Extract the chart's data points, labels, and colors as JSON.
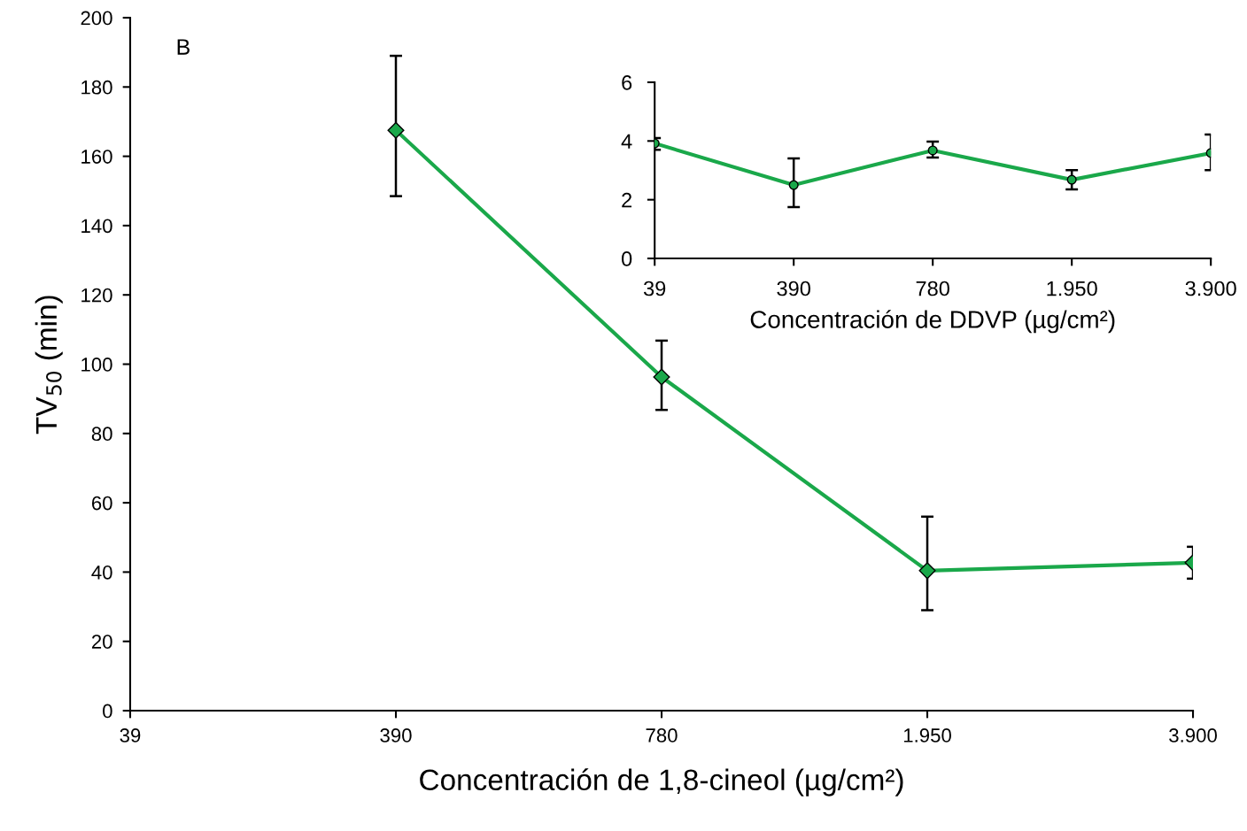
{
  "chart_data": [
    {
      "type": "line",
      "ylabel": "TV$_{50}$ (min)",
      "xlabel": "Concentración de 1,8-cineol (µg/cm²)",
      "annotations": [
        "B"
      ],
      "categories": [
        "39",
        "390",
        "780",
        "1.950",
        "3.900"
      ],
      "series": [
        {
          "color": "#1aa84a",
          "values": [
            null,
            167.5,
            96.3,
            40.4,
            42.7
          ],
          "errors": [
            null,
            [
              148.5,
              189
            ],
            [
              86.8,
              106.8
            ],
            [
              29,
              56
            ],
            [
              38.1,
              47.3
            ]
          ]
        }
      ],
      "ylim": [
        0,
        200
      ],
      "yticks": [
        0,
        20,
        40,
        60,
        80,
        100,
        120,
        140,
        160,
        180,
        200
      ],
      "marker": "diamond",
      "line_style": "solid",
      "grid": false,
      "legend": false
    },
    {
      "type": "line",
      "xlabel": "Concentración de DDVP (µg/cm²)",
      "categories": [
        "39",
        "390",
        "780",
        "1.950",
        "3.900"
      ],
      "series": [
        {
          "color": "#1aa84a",
          "values": [
            3.92,
            2.5,
            3.68,
            2.68,
            3.59
          ],
          "errors": [
            [
              3.7,
              4.1
            ],
            [
              1.75,
              3.41
            ],
            [
              3.44,
              3.98
            ],
            [
              2.35,
              3.01
            ],
            [
              3.01,
              4.22
            ]
          ]
        }
      ],
      "ylim": [
        0,
        6
      ],
      "yticks": [
        0,
        2,
        4,
        6
      ],
      "marker": "circle",
      "line_style": "solid",
      "grid": false,
      "legend": false
    }
  ]
}
